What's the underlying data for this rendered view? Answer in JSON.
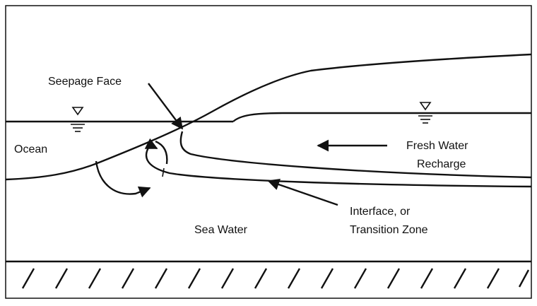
{
  "labels": [
    "Seepage Face",
    "Ocean",
    "Fresh Water",
    "Recharge",
    "Sea Water",
    "Interface, or",
    "Transition Zone"
  ]
}
